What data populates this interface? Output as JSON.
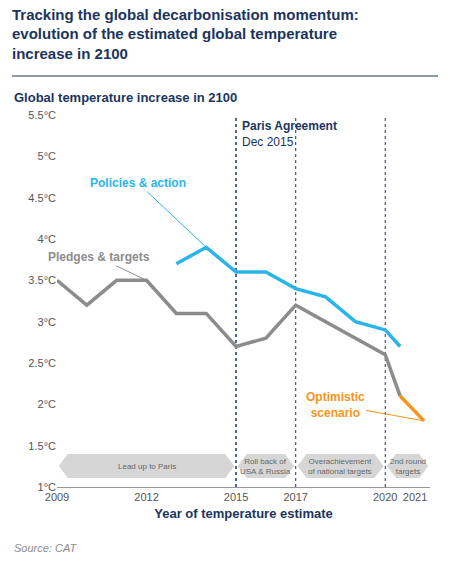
{
  "chart_data": {
    "type": "line",
    "title": "Tracking the global decarbonisation momentum:\nevolution of the estimated global temperature\nincrease in 2100",
    "y_label": "Global temperature increase in 2100",
    "x_label": "Year of temperature estimate",
    "source": "Source: CAT",
    "xlim": [
      2009,
      2021.5
    ],
    "xticks": [
      2009,
      2012,
      2015,
      2017,
      2020,
      2021
    ],
    "ylim": [
      1,
      5.5
    ],
    "yticks": [
      {
        "value": 1,
        "label": "1°C"
      },
      {
        "value": 1.5,
        "label": "1.5°C"
      },
      {
        "value": 2,
        "label": "2°C"
      },
      {
        "value": 2.5,
        "label": "2.5°C"
      },
      {
        "value": 3,
        "label": "3°C"
      },
      {
        "value": 3.5,
        "label": "3.5°C"
      },
      {
        "value": 4,
        "label": "4°C"
      },
      {
        "value": 4.5,
        "label": "4.5°C"
      },
      {
        "value": 5,
        "label": "5°C"
      },
      {
        "value": 5.5,
        "label": "5.5°C"
      }
    ],
    "grid": false,
    "series": [
      {
        "name": "Pledges & targets",
        "color": "#8c8c8c",
        "x": [
          2009,
          2010,
          2011,
          2012,
          2013,
          2014,
          2015,
          2016,
          2017,
          2018,
          2019,
          2020,
          2020.5
        ],
        "values": [
          3.5,
          3.2,
          3.5,
          3.5,
          3.1,
          3.1,
          2.7,
          2.8,
          3.2,
          3.0,
          2.8,
          2.6,
          2.1
        ]
      },
      {
        "name": "Policies & action",
        "color": "#29b5e8",
        "x": [
          2013,
          2014,
          2015,
          2016,
          2017,
          2018,
          2019,
          2020,
          2020.5
        ],
        "values": [
          3.7,
          3.9,
          3.6,
          3.6,
          3.4,
          3.3,
          3.0,
          2.9,
          2.7
        ]
      },
      {
        "name": "Optimistic\nscenario",
        "color": "#f7941d",
        "x": [
          2020.5,
          2021.3
        ],
        "values": [
          2.1,
          1.8
        ]
      }
    ],
    "annotations": [
      {
        "x": 2015,
        "text": "Paris Agreement\nDec 2015"
      }
    ],
    "periods": [
      {
        "start": 2009,
        "end": 2015,
        "label": "Lead up to Paris"
      },
      {
        "start": 2015,
        "end": 2017,
        "label": "Roll back of\nUSA & Russia"
      },
      {
        "start": 2017,
        "end": 2020,
        "label": "Overachievement\nof national targets"
      },
      {
        "start": 2020,
        "end": 2021.5,
        "label": "2nd round\ntargets"
      }
    ]
  }
}
